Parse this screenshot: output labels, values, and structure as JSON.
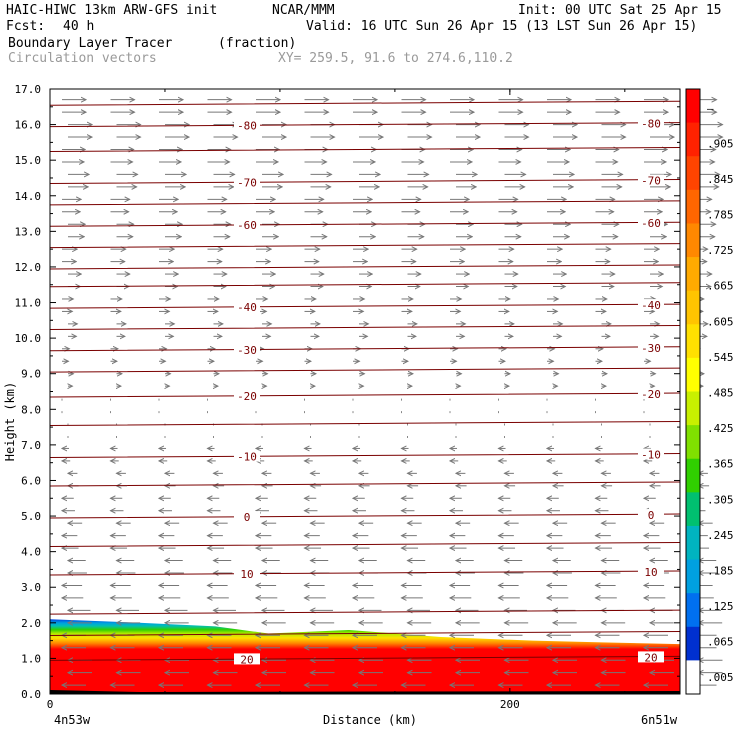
{
  "header": {
    "model": "HAIC-HIWC 13km ARW-GFS init",
    "org": "NCAR/MMM",
    "init": "Init: 00 UTC Sat 25 Apr 15",
    "fcst_label": "Fcst:",
    "fcst_value": "40 h",
    "valid": "Valid: 16 UTC Sun 26 Apr 15 (13 LST Sun 26 Apr 15)",
    "field_name": "Boundary Layer Tracer",
    "field_units": "(fraction)",
    "vectors_label": "Circulation vectors",
    "xy": "XY= 259.5, 91.6 to 274.6,110.2"
  },
  "chart_data": {
    "type": "heatmap",
    "xlabel": "Distance (km)",
    "ylabel": "Height (km)",
    "xlim": [
      0,
      274
    ],
    "ylim": [
      0,
      17
    ],
    "x_ticks": [
      {
        "value": 0,
        "label": "0"
      },
      {
        "value": 200,
        "label": "200"
      }
    ],
    "y_ticks": [
      "0.0",
      "1.0",
      "2.0",
      "3.0",
      "4.0",
      "5.0",
      "6.0",
      "7.0",
      "8.0",
      "9.0",
      "10.0",
      "11.0",
      "12.0",
      "13.0",
      "14.0",
      "15.0",
      "16.0",
      "17.0"
    ],
    "x_end_labels": {
      "left": "4n53w",
      "right": "6n51w"
    },
    "colorbar": {
      "labels": [
        "–",
        ".905",
        ".845",
        ".785",
        ".725",
        ".665",
        ".605",
        ".545",
        ".485",
        ".425",
        ".365",
        ".305",
        ".245",
        ".185",
        ".125",
        ".065",
        ".005"
      ],
      "colors": [
        "#ff0000",
        "#ff2200",
        "#ff4400",
        "#ff6600",
        "#ff8800",
        "#ffaa00",
        "#ffc400",
        "#ffe000",
        "#ffff00",
        "#c8f000",
        "#80e000",
        "#30d000",
        "#00c070",
        "#00b4c0",
        "#00a0e0",
        "#0070f0",
        "#0030d0",
        "#ffffff"
      ]
    },
    "temperature_contours": [
      {
        "height_km": 16.0,
        "label": "-80"
      },
      {
        "height_km": 14.4,
        "label": "-70"
      },
      {
        "height_km": 13.2,
        "label": "-60"
      },
      {
        "height_km": 10.9,
        "label": "-40"
      },
      {
        "height_km": 9.7,
        "label": "-30"
      },
      {
        "height_km": 8.4,
        "label": "-20"
      },
      {
        "height_km": 6.7,
        "label": "-10"
      },
      {
        "height_km": 5.0,
        "label": "0"
      },
      {
        "height_km": 3.4,
        "label": "10"
      },
      {
        "height_km": 1.0,
        "label": "20"
      }
    ],
    "unlabeled_contours_km": [
      16.6,
      15.3,
      13.8,
      12.6,
      12.0,
      11.5,
      10.3,
      9.1,
      7.6,
      5.9,
      4.2,
      2.3,
      1.7
    ],
    "boundary_layer_top_km": [
      {
        "x": 0,
        "top": 2.1
      },
      {
        "x": 40,
        "top": 2.0
      },
      {
        "x": 72,
        "top": 1.9
      },
      {
        "x": 95,
        "top": 1.7
      },
      {
        "x": 130,
        "top": 1.8
      },
      {
        "x": 170,
        "top": 1.6
      },
      {
        "x": 210,
        "top": 1.5
      },
      {
        "x": 240,
        "top": 1.45
      },
      {
        "x": 274,
        "top": 1.4
      }
    ],
    "wind_regime": {
      "upper": "westerly",
      "mid": "weak",
      "lower": "easterly"
    }
  }
}
